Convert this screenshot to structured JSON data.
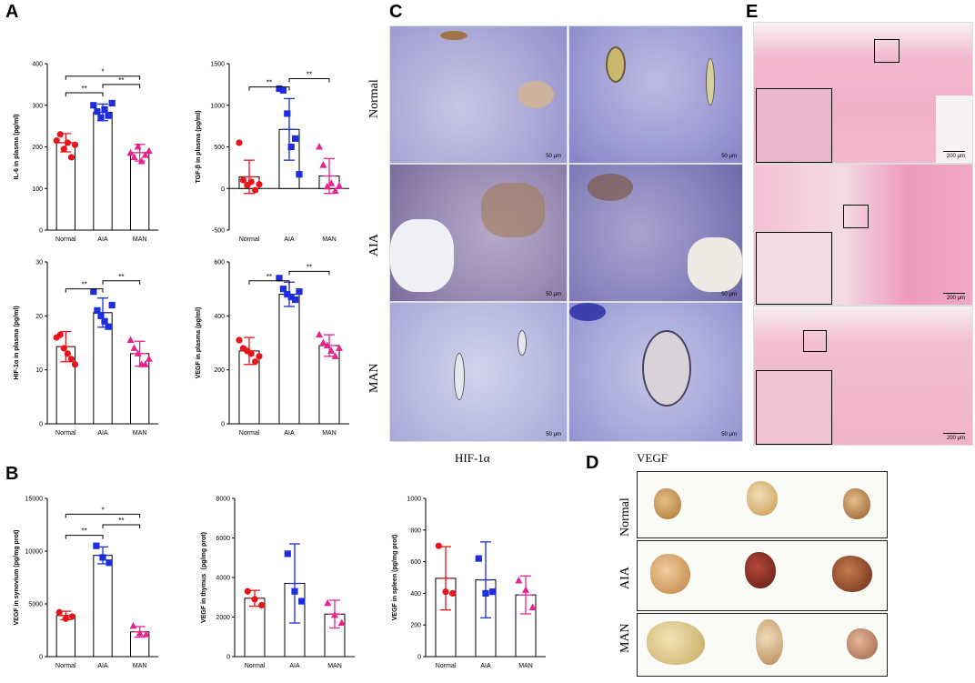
{
  "panels": {
    "A": "A",
    "B": "B",
    "C": "C",
    "D": "D",
    "E": "E"
  },
  "colors": {
    "normal": "#e8141c",
    "aia": "#1e2de0",
    "man": "#e8238f"
  },
  "groups": [
    "Normal",
    "AIA",
    "MAN"
  ],
  "chart_data": [
    {
      "type": "bar",
      "id": "il6",
      "ylabel": "IL-6 in plasma (pg/ml)",
      "ylim": [
        0,
        400
      ],
      "yticks": [
        "0",
        "100",
        "200",
        "300",
        "400"
      ],
      "categories": [
        "Normal",
        "AIA",
        "MAN"
      ],
      "values": [
        210,
        283,
        186
      ],
      "err": [
        22,
        20,
        20
      ],
      "points": [
        [
          215,
          230,
          195,
          210,
          175,
          205
        ],
        [
          300,
          285,
          270,
          290,
          275,
          305
        ],
        [
          185,
          175,
          200,
          165,
          180,
          190
        ]
      ],
      "markers": [
        "circle",
        "square",
        "triangle"
      ],
      "sig": [
        {
          "from": 0,
          "to": 1,
          "label": "**",
          "y": 330
        },
        {
          "from": 0,
          "to": 2,
          "label": "*",
          "y": 370
        },
        {
          "from": 1,
          "to": 2,
          "label": "**",
          "y": 350
        }
      ]
    },
    {
      "type": "bar",
      "id": "tgf",
      "ylabel": "TGF-β in plasma (pg/ml)",
      "ylim": [
        -500,
        1500
      ],
      "yticks": [
        "-500",
        "0",
        "500",
        "1000",
        "1500"
      ],
      "categories": [
        "Normal",
        "AIA",
        "MAN"
      ],
      "values": [
        140,
        710,
        150
      ],
      "err": [
        200,
        370,
        210
      ],
      "points": [
        [
          550,
          100,
          40,
          80,
          -20,
          50
        ],
        [
          1200,
          1180,
          900,
          500,
          600,
          170
        ],
        [
          500,
          280,
          20,
          60,
          -30,
          30
        ]
      ],
      "markers": [
        "circle",
        "square",
        "triangle"
      ],
      "sig": [
        {
          "from": 0,
          "to": 1,
          "label": "**",
          "y": 1220
        },
        {
          "from": 1,
          "to": 2,
          "label": "**",
          "y": 1320
        }
      ]
    },
    {
      "type": "bar",
      "id": "hif",
      "ylabel": "HIF-1α in plasma (pg/ml)",
      "ylim": [
        0,
        30
      ],
      "yticks": [
        "0",
        "10",
        "20",
        "30"
      ],
      "categories": [
        "Normal",
        "AIA",
        "MAN"
      ],
      "values": [
        14.3,
        20.6,
        13.0
      ],
      "err": [
        2.8,
        2.7,
        2.3
      ],
      "points": [
        [
          16,
          16.5,
          14,
          13,
          12,
          11
        ],
        [
          24.5,
          21,
          20,
          19,
          18,
          22
        ],
        [
          15.5,
          14,
          13,
          11,
          11,
          12
        ]
      ],
      "markers": [
        "circle",
        "square",
        "triangle"
      ],
      "sig": [
        {
          "from": 0,
          "to": 1,
          "label": "**",
          "y": 25
        },
        {
          "from": 1,
          "to": 2,
          "label": "**",
          "y": 26.5
        }
      ]
    },
    {
      "type": "bar",
      "id": "vegf",
      "ylabel": "VEGF in plasma (pg/ml)",
      "ylim": [
        0,
        600
      ],
      "yticks": [
        "0",
        "200",
        "400",
        "600"
      ],
      "categories": [
        "Normal",
        "AIA",
        "MAN"
      ],
      "values": [
        270,
        480,
        290
      ],
      "err": [
        50,
        45,
        40
      ],
      "points": [
        [
          310,
          280,
          270,
          260,
          230,
          250
        ],
        [
          540,
          500,
          480,
          470,
          460,
          490
        ],
        [
          330,
          300,
          290,
          270,
          250,
          280
        ]
      ],
      "markers": [
        "circle",
        "square",
        "triangle"
      ],
      "sig": [
        {
          "from": 0,
          "to": 1,
          "label": "**",
          "y": 530
        },
        {
          "from": 1,
          "to": 2,
          "label": "**",
          "y": 565
        }
      ]
    },
    {
      "type": "bar",
      "id": "syn",
      "ylabel": "VEGF in synovium (pg/mg prot)",
      "ylim": [
        0,
        15000
      ],
      "yticks": [
        "0",
        "5000",
        "10000",
        "15000"
      ],
      "categories": [
        "Normal",
        "AIA",
        "MAN"
      ],
      "values": [
        3900,
        9600,
        2350
      ],
      "err": [
        400,
        800,
        500
      ],
      "points": [
        [
          4200,
          3600,
          3800
        ],
        [
          10500,
          9400,
          8900
        ],
        [
          2900,
          2200,
          2100
        ]
      ],
      "markers": [
        "circle",
        "square",
        "triangle"
      ],
      "sig": [
        {
          "from": 0,
          "to": 1,
          "label": "**",
          "y": 11500
        },
        {
          "from": 0,
          "to": 2,
          "label": "*",
          "y": 13500
        },
        {
          "from": 1,
          "to": 2,
          "label": "**",
          "y": 12500
        }
      ]
    },
    {
      "type": "bar",
      "id": "thy",
      "ylabel": "VEGF in thymus（pg/mg prot)",
      "ylim": [
        0,
        8000
      ],
      "yticks": [
        "0",
        "2000",
        "4000",
        "6000",
        "8000"
      ],
      "categories": [
        "Normal",
        "AIA",
        "MAN"
      ],
      "values": [
        2950,
        3700,
        2150
      ],
      "err": [
        400,
        2000,
        700
      ],
      "points": [
        [
          3300,
          2900,
          2600
        ],
        [
          5200,
          3300,
          2800
        ],
        [
          2700,
          2100,
          1700
        ]
      ],
      "markers": [
        "circle",
        "square",
        "triangle"
      ],
      "sig": []
    },
    {
      "type": "bar",
      "id": "spl",
      "ylabel": "VEGF in spleen (pg/mg prot)",
      "ylim": [
        0,
        1000
      ],
      "yticks": [
        "0",
        "200",
        "400",
        "600",
        "800",
        "1000"
      ],
      "categories": [
        "Normal",
        "AIA",
        "MAN"
      ],
      "values": [
        495,
        485,
        390
      ],
      "err": [
        200,
        240,
        120
      ],
      "points": [
        [
          700,
          410,
          400
        ],
        [
          620,
          400,
          410
        ],
        [
          480,
          420,
          310
        ]
      ],
      "markers": [
        "circle",
        "square",
        "triangle"
      ],
      "sig": []
    }
  ],
  "panelC": {
    "rows": [
      "Normal",
      "AIA",
      "MAN"
    ],
    "cols": [
      "HIF-1α",
      "VEGF"
    ],
    "scale": "50 μm"
  },
  "panelD": {
    "rows": [
      "Normal",
      "AIA",
      "MAN"
    ]
  },
  "panelE": {
    "scale": "200 μm"
  }
}
